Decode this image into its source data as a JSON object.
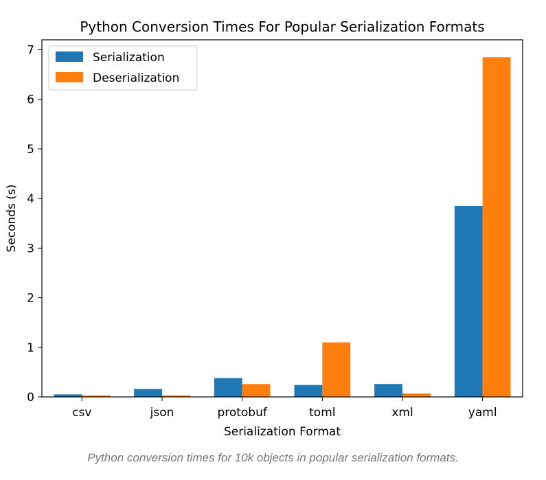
{
  "chart_data": {
    "type": "bar",
    "title": "Python Conversion Times For Popular Serialization Formats",
    "xlabel": "Serialization Format",
    "ylabel": "Seconds (s)",
    "categories": [
      "csv",
      "json",
      "protobuf",
      "toml",
      "xml",
      "yaml"
    ],
    "series": [
      {
        "name": "Serialization",
        "color": "#1f77b4",
        "values": [
          0.05,
          0.16,
          0.38,
          0.24,
          0.26,
          3.85
        ]
      },
      {
        "name": "Deserialization",
        "color": "#ff7f0e",
        "values": [
          0.03,
          0.03,
          0.26,
          1.1,
          0.07,
          6.85
        ]
      }
    ],
    "ylim": [
      0,
      7.2
    ],
    "yticks": [
      0,
      1,
      2,
      3,
      4,
      5,
      6,
      7
    ],
    "grid": false,
    "legend_position": "top-left"
  },
  "caption": "Python conversion times for 10k objects in popular serialization formats."
}
